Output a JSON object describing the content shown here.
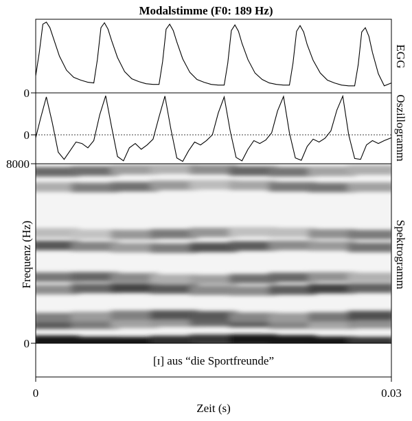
{
  "chart_data": {
    "type": "line",
    "title": "Modalstimme (F0: 189 Hz)",
    "xlabel": "Zeit (s)",
    "xlim": [
      0,
      0.03
    ],
    "x_ticks": [
      "0",
      "0.03"
    ],
    "panels": [
      {
        "id": "egg",
        "label": "EGG",
        "baseline_tick": "0",
        "series": [
          {
            "values_x_ms": [
              0,
              0.3,
              0.6,
              0.9,
              1.2,
              1.5,
              2.0,
              2.6,
              3.2,
              3.8,
              4.4,
              4.9,
              5.2,
              5.5,
              5.8,
              6.1,
              6.4,
              6.9,
              7.5,
              8.1,
              8.7,
              9.3,
              9.9,
              10.4,
              10.7,
              11.0,
              11.3,
              11.6,
              11.9,
              12.4,
              13.0,
              13.6,
              14.2,
              14.8,
              15.4,
              15.9,
              16.2,
              16.5,
              16.8,
              17.1,
              17.4,
              17.9,
              18.5,
              19.1,
              19.7,
              20.3,
              20.9,
              21.4,
              21.7,
              22.0,
              22.3,
              22.6,
              22.9,
              23.4,
              24.0,
              24.6,
              25.2,
              25.8,
              26.4,
              26.9,
              27.2,
              27.5,
              27.8,
              28.1,
              28.4,
              28.9,
              29.4,
              30.0
            ],
            "values_y": [
              0.22,
              0.55,
              0.95,
              0.98,
              0.9,
              0.75,
              0.5,
              0.3,
              0.2,
              0.16,
              0.13,
              0.12,
              0.45,
              0.9,
              0.97,
              0.88,
              0.72,
              0.48,
              0.28,
              0.18,
              0.14,
              0.11,
              0.1,
              0.1,
              0.42,
              0.88,
              0.95,
              0.86,
              0.7,
              0.46,
              0.27,
              0.17,
              0.13,
              0.1,
              0.09,
              0.09,
              0.4,
              0.86,
              0.94,
              0.85,
              0.68,
              0.45,
              0.26,
              0.17,
              0.12,
              0.1,
              0.09,
              0.09,
              0.4,
              0.85,
              0.93,
              0.84,
              0.66,
              0.44,
              0.26,
              0.16,
              0.12,
              0.09,
              0.08,
              0.08,
              0.38,
              0.84,
              0.9,
              0.78,
              0.55,
              0.25,
              0.08,
              0.12
            ]
          }
        ]
      },
      {
        "id": "osz",
        "label": "Oszillogramm",
        "baseline_tick": "0",
        "series": [
          {
            "values_x_ms": [
              0,
              0.4,
              0.9,
              1.4,
              1.9,
              2.4,
              2.9,
              3.4,
              3.9,
              4.4,
              4.9,
              5.4,
              5.9,
              6.4,
              6.9,
              7.4,
              7.9,
              8.4,
              8.9,
              9.4,
              9.9,
              10.4,
              10.9,
              11.4,
              11.9,
              12.4,
              12.9,
              13.4,
              13.9,
              14.4,
              14.9,
              15.4,
              15.9,
              16.4,
              16.9,
              17.4,
              17.9,
              18.4,
              18.9,
              19.4,
              19.9,
              20.4,
              20.9,
              21.4,
              21.9,
              22.4,
              22.9,
              23.4,
              23.9,
              24.4,
              24.9,
              25.4,
              25.9,
              26.4,
              26.9,
              27.4,
              27.9,
              28.4,
              28.9,
              29.4,
              30.0
            ],
            "values_y": [
              -0.1,
              0.4,
              0.95,
              0.3,
              -0.6,
              -0.85,
              -0.55,
              -0.25,
              -0.3,
              -0.45,
              -0.2,
              0.5,
              0.98,
              0.2,
              -0.75,
              -0.9,
              -0.45,
              -0.3,
              -0.5,
              -0.35,
              -0.15,
              0.45,
              0.97,
              0.15,
              -0.8,
              -0.92,
              -0.55,
              -0.25,
              -0.35,
              -0.2,
              0.0,
              0.55,
              0.95,
              0.1,
              -0.78,
              -0.9,
              -0.5,
              -0.2,
              -0.3,
              -0.18,
              0.05,
              0.6,
              0.96,
              0.05,
              -0.8,
              -0.88,
              -0.4,
              -0.15,
              -0.25,
              -0.12,
              0.1,
              0.62,
              0.97,
              0.0,
              -0.82,
              -0.85,
              -0.35,
              -0.2,
              -0.3,
              -0.2,
              -0.1
            ]
          }
        ]
      },
      {
        "id": "spec",
        "label": "Spektrogramm",
        "ylabel": "Frequenz (Hz)",
        "y_ticks": [
          "0",
          "8000"
        ],
        "ylim": [
          0,
          8000
        ],
        "annotation": "[ɪ] aus “die Sportfreunde”",
        "dark_bands_hz": [
          100,
          900,
          1200,
          2400,
          2900,
          4300,
          4900,
          7000,
          7700
        ],
        "band_intensity": [
          1.0,
          0.5,
          0.55,
          0.6,
          0.45,
          0.55,
          0.35,
          0.4,
          0.45
        ]
      }
    ]
  }
}
